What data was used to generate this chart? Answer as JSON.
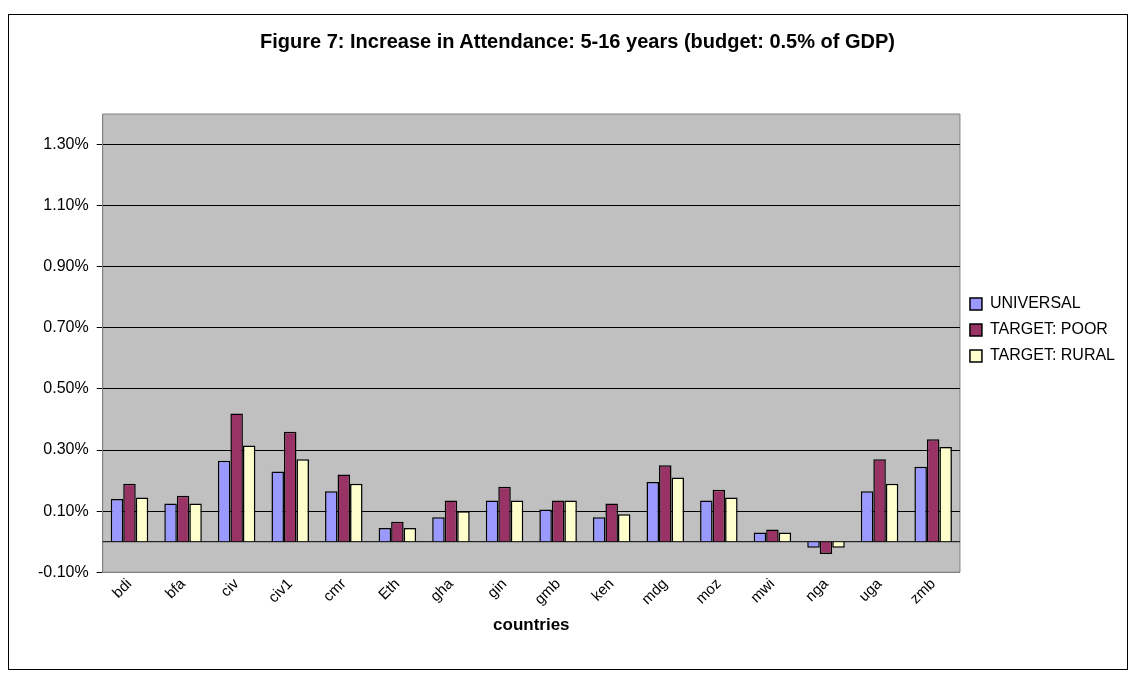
{
  "chart_data": {
    "type": "bar",
    "title": "Figure 7: Increase in Attendance: 5-16 years (budget: 0.5% of GDP)",
    "xlabel": "countries",
    "categories": [
      "bdi",
      "bfa",
      "civ",
      "civ1",
      "cmr",
      "Eth",
      "gha",
      "gin",
      "gmb",
      "ken",
      "mdg",
      "moz",
      "mwi",
      "nga",
      "uga",
      "zmb"
    ],
    "series": [
      {
        "name": "UNIVERSAL",
        "color": "#9999ff",
        "values": [
          0.14,
          0.125,
          0.265,
          0.23,
          0.165,
          0.045,
          0.08,
          0.135,
          0.105,
          0.08,
          0.195,
          0.135,
          0.03,
          -0.02,
          0.165,
          0.245
        ]
      },
      {
        "name": "TARGET: POOR",
        "color": "#993366",
        "values": [
          0.19,
          0.15,
          0.42,
          0.36,
          0.22,
          0.065,
          0.135,
          0.18,
          0.135,
          0.125,
          0.25,
          0.17,
          0.04,
          -0.04,
          0.27,
          0.335
        ]
      },
      {
        "name": "TARGET: RURAL",
        "color": "#ffffcc",
        "values": [
          0.145,
          0.125,
          0.315,
          0.27,
          0.19,
          0.045,
          0.1,
          0.135,
          0.135,
          0.09,
          0.21,
          0.145,
          0.03,
          -0.02,
          0.19,
          0.31
        ]
      }
    ],
    "ylim": [
      -0.1,
      1.4
    ],
    "yticks": [
      {
        "value": -0.1,
        "label": "-0.10%"
      },
      {
        "value": 0.1,
        "label": "0.10%"
      },
      {
        "value": 0.3,
        "label": "0.30%"
      },
      {
        "value": 0.5,
        "label": "0.50%"
      },
      {
        "value": 0.7,
        "label": "0.70%"
      },
      {
        "value": 0.9,
        "label": "0.90%"
      },
      {
        "value": 1.1,
        "label": "1.10%"
      },
      {
        "value": 1.3,
        "label": "1.30%"
      }
    ],
    "grid": "y",
    "legend": "right"
  }
}
